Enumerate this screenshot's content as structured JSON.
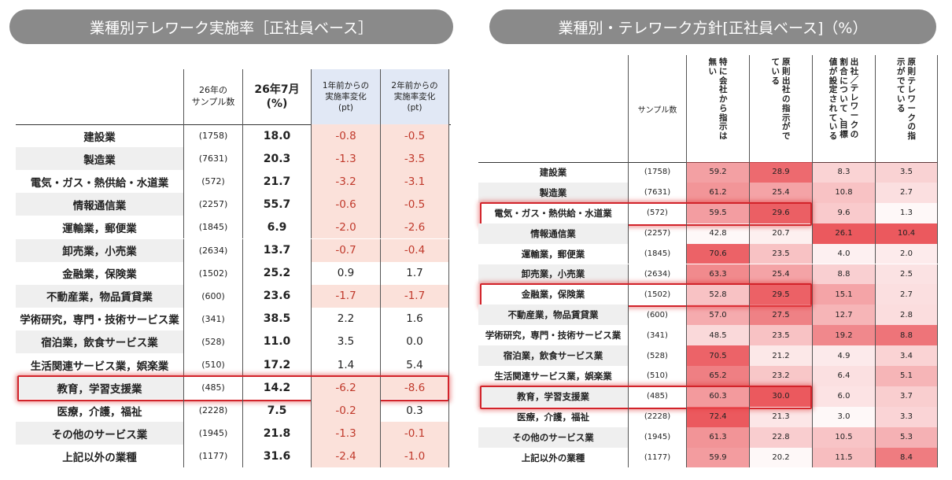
{
  "left": {
    "title": "業種別テレワーク実施率［正社員ベース］",
    "headers": {
      "n": "26年の\nサンプル数",
      "rate": "26年7月\n(%)",
      "d1": "1年前からの\n実施率変化\n(pt)",
      "d2": "2年前からの\n実施率変化\n(pt)"
    },
    "rows": [
      {
        "name": "建設業",
        "n": "(1758)",
        "rate": "18.0",
        "d1": "-0.8",
        "d2": "-0.5"
      },
      {
        "name": "製造業",
        "n": "(7631)",
        "rate": "20.3",
        "d1": "-1.3",
        "d2": "-3.5"
      },
      {
        "name": "電気・ガス・熱供給・水道業",
        "n": "(572)",
        "rate": "21.7",
        "d1": "-3.2",
        "d2": "-3.1"
      },
      {
        "name": "情報通信業",
        "n": "(2257)",
        "rate": "55.7",
        "d1": "-0.6",
        "d2": "-0.5"
      },
      {
        "name": "運輸業，郵便業",
        "n": "(1845)",
        "rate": "6.9",
        "d1": "-2.0",
        "d2": "-2.6"
      },
      {
        "name": "卸売業，小売業",
        "n": "(2634)",
        "rate": "13.7",
        "d1": "-0.7",
        "d2": "-0.4"
      },
      {
        "name": "金融業，保険業",
        "n": "(1502)",
        "rate": "25.2",
        "d1": "0.9",
        "d2": "1.7"
      },
      {
        "name": "不動産業，物品賃貸業",
        "n": "(600)",
        "rate": "23.6",
        "d1": "-1.7",
        "d2": "-1.7"
      },
      {
        "name": "学術研究，専門・技術サービス業",
        "n": "(341)",
        "rate": "38.5",
        "d1": "2.2",
        "d2": "1.6"
      },
      {
        "name": "宿泊業，飲食サービス業",
        "n": "(528)",
        "rate": "11.0",
        "d1": "3.5",
        "d2": "0.0"
      },
      {
        "name": "生活関連サービス業，娯楽業",
        "n": "(510)",
        "rate": "17.2",
        "d1": "1.4",
        "d2": "5.4"
      },
      {
        "name": "教育，学習支援業",
        "n": "(485)",
        "rate": "14.2",
        "d1": "-6.2",
        "d2": "-8.6",
        "highlight": true
      },
      {
        "name": "医療，介護，福祉",
        "n": "(2228)",
        "rate": "7.5",
        "d1": "-0.2",
        "d2": "0.3"
      },
      {
        "name": "その他のサービス業",
        "n": "(1945)",
        "rate": "21.8",
        "d1": "-1.3",
        "d2": "-0.1"
      },
      {
        "name": "上記以外の業種",
        "n": "(1177)",
        "rate": "31.6",
        "d1": "-2.4",
        "d2": "-1.0"
      }
    ]
  },
  "right": {
    "title": "業種別・テレワーク方針[正社員ベース]（%）",
    "headers": {
      "n": "サンプル数",
      "cols": [
        [
          "特に会社から指示は",
          "無い"
        ],
        [
          "原則出社の指示がで",
          "ている"
        ],
        [
          "出社／テレワークの",
          "割合について、目標",
          "値が設定されている"
        ],
        [
          "原則テレワークの指",
          "示がでている"
        ]
      ]
    },
    "rows": [
      {
        "name": "建設業",
        "n": "(1758)",
        "v": [
          "59.2",
          "28.9",
          "8.3",
          "3.5"
        ]
      },
      {
        "name": "製造業",
        "n": "(7631)",
        "v": [
          "61.2",
          "25.4",
          "10.8",
          "2.7"
        ]
      },
      {
        "name": "電気・ガス・熱供給・水道業",
        "n": "(572)",
        "v": [
          "59.5",
          "29.6",
          "9.6",
          "1.3"
        ],
        "highlight": true
      },
      {
        "name": "情報通信業",
        "n": "(2257)",
        "v": [
          "42.8",
          "20.7",
          "26.1",
          "10.4"
        ]
      },
      {
        "name": "運輸業，郵便業",
        "n": "(1845)",
        "v": [
          "70.6",
          "23.5",
          "4.0",
          "2.0"
        ]
      },
      {
        "name": "卸売業，小売業",
        "n": "(2634)",
        "v": [
          "63.3",
          "25.4",
          "8.8",
          "2.5"
        ]
      },
      {
        "name": "金融業，保険業",
        "n": "(1502)",
        "v": [
          "52.8",
          "29.5",
          "15.1",
          "2.7"
        ],
        "highlight": true
      },
      {
        "name": "不動産業，物品賃貸業",
        "n": "(600)",
        "v": [
          "57.0",
          "27.5",
          "12.7",
          "2.8"
        ]
      },
      {
        "name": "学術研究，専門・技術サービス業",
        "n": "(341)",
        "v": [
          "48.5",
          "23.5",
          "19.2",
          "8.8"
        ]
      },
      {
        "name": "宿泊業，飲食サービス業",
        "n": "(528)",
        "v": [
          "70.5",
          "21.2",
          "4.9",
          "3.4"
        ]
      },
      {
        "name": "生活関連サービス業，娯楽業",
        "n": "(510)",
        "v": [
          "65.2",
          "23.2",
          "6.4",
          "5.1"
        ]
      },
      {
        "name": "教育，学習支援業",
        "n": "(485)",
        "v": [
          "60.3",
          "30.0",
          "6.0",
          "3.7"
        ],
        "highlight": true
      },
      {
        "name": "医療，介護，福祉",
        "n": "(2228)",
        "v": [
          "72.4",
          "21.3",
          "3.0",
          "3.3"
        ]
      },
      {
        "name": "その他のサービス業",
        "n": "(1945)",
        "v": [
          "61.3",
          "22.8",
          "10.5",
          "5.3"
        ]
      },
      {
        "name": "上記以外の業種",
        "n": "(1177)",
        "v": [
          "59.9",
          "20.2",
          "11.5",
          "8.4"
        ]
      }
    ]
  },
  "colors": {
    "header_pill": "#8a8a8a",
    "neg_fill": "#fbe1da",
    "neg_text": "#c0392b",
    "heat_max": "#e8444a",
    "highlight": "#d2232a",
    "delta_header": "#e1e8f5"
  }
}
